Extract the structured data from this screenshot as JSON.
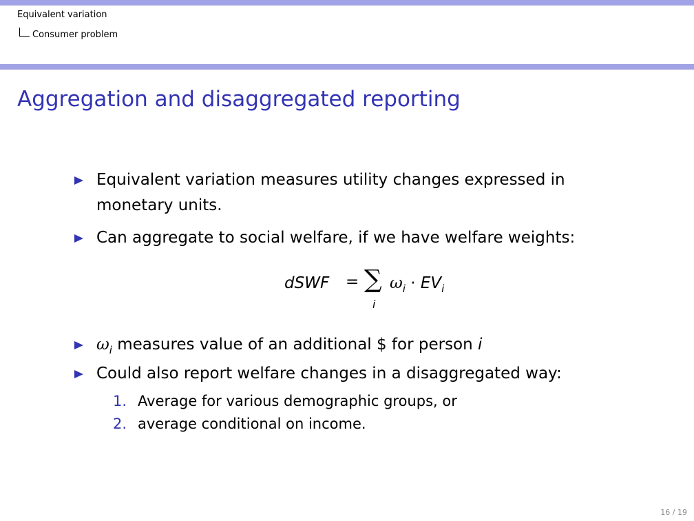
{
  "header": {
    "section": "Equivalent variation",
    "subsection": "Consumer problem"
  },
  "frame": {
    "title": "Aggregation and disaggregated reporting"
  },
  "bullets": {
    "b1_line1": "Equivalent variation measures utility changes expressed in",
    "b1_line2": "monetary units.",
    "b2": "Can aggregate to social welfare, if we have welfare weights:",
    "b3_omega": "ω",
    "b3_sub": "i",
    "b3_text": " measures value of an additional $ for person ",
    "b3_var": "i",
    "b4": "Could also report welfare changes in a disaggregated way:"
  },
  "formula": {
    "lhs": "dSWF",
    "eq": "=",
    "sigma": "∑",
    "sigma_index": "i",
    "omega": "ω",
    "omega_sub": "i",
    "dot": " · ",
    "ev": "EV",
    "ev_sub": "i"
  },
  "enumeration": [
    {
      "number": "1.",
      "text": "Average for various demographic groups, or"
    },
    {
      "number": "2.",
      "text": "average conditional on income."
    }
  ],
  "footer": {
    "page": "16 / 19"
  },
  "colors": {
    "accent": "#3333b3",
    "header_bar": "#a2a2e6"
  }
}
